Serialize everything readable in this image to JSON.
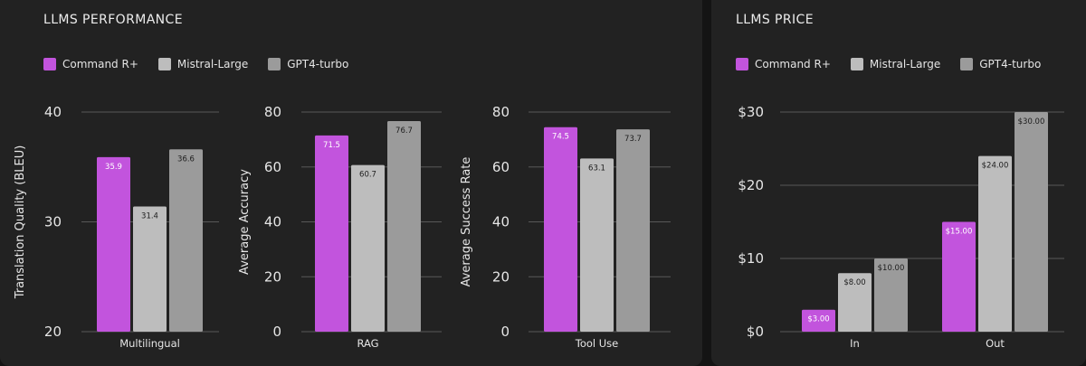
{
  "colors": {
    "command": "#c254dd",
    "mistral": "#bdbdbd",
    "gpt": "#9b9b9b",
    "grid": "#585858",
    "text": "#e6e6e6",
    "label_dark": "#1c1c1c"
  },
  "performance": {
    "title": "LLMS PERFORMANCE",
    "legend": [
      {
        "name": "Command R+",
        "color": "#c254dd"
      },
      {
        "name": "Mistral-Large",
        "color": "#bdbdbd"
      },
      {
        "name": "GPT4-turbo",
        "color": "#9b9b9b"
      }
    ]
  },
  "price": {
    "title": "LLMS PRICE",
    "legend": [
      {
        "name": "Command R+",
        "color": "#c254dd"
      },
      {
        "name": "Mistral-Large",
        "color": "#bdbdbd"
      },
      {
        "name": "GPT4-turbo",
        "color": "#9b9b9b"
      }
    ]
  },
  "chart_data": [
    {
      "type": "bar",
      "categories": [
        "Multilingual"
      ],
      "ylabel": "Translation Quality (BLEU)",
      "ylim": [
        20,
        40
      ],
      "yticks": [
        {
          "value": 20,
          "label": "20"
        },
        {
          "value": 30,
          "label": "30"
        },
        {
          "value": 40,
          "label": "40"
        }
      ],
      "grid": true,
      "series": [
        {
          "name": "Command R+",
          "values": [
            35.9
          ],
          "labels": [
            "35.9"
          ]
        },
        {
          "name": "Mistral-Large",
          "values": [
            31.4
          ],
          "labels": [
            "31.4"
          ]
        },
        {
          "name": "GPT4-turbo",
          "values": [
            36.6
          ],
          "labels": [
            "36.6"
          ]
        }
      ]
    },
    {
      "type": "bar",
      "categories": [
        "RAG"
      ],
      "ylabel": "Average Accuracy",
      "ylim": [
        0,
        80
      ],
      "yticks": [
        {
          "value": 0,
          "label": "0"
        },
        {
          "value": 20,
          "label": "20"
        },
        {
          "value": 40,
          "label": "40"
        },
        {
          "value": 60,
          "label": "60"
        },
        {
          "value": 80,
          "label": "80"
        }
      ],
      "grid": true,
      "series": [
        {
          "name": "Command R+",
          "values": [
            71.5
          ],
          "labels": [
            "71.5"
          ]
        },
        {
          "name": "Mistral-Large",
          "values": [
            60.7
          ],
          "labels": [
            "60.7"
          ]
        },
        {
          "name": "GPT4-turbo",
          "values": [
            76.7
          ],
          "labels": [
            "76.7"
          ]
        }
      ]
    },
    {
      "type": "bar",
      "categories": [
        "Tool Use"
      ],
      "ylabel": "Average Success Rate",
      "ylim": [
        0,
        80
      ],
      "yticks": [
        {
          "value": 0,
          "label": "0"
        },
        {
          "value": 20,
          "label": "20"
        },
        {
          "value": 40,
          "label": "40"
        },
        {
          "value": 60,
          "label": "60"
        },
        {
          "value": 80,
          "label": "80"
        }
      ],
      "grid": true,
      "series": [
        {
          "name": "Command R+",
          "values": [
            74.5
          ],
          "labels": [
            "74.5"
          ]
        },
        {
          "name": "Mistral-Large",
          "values": [
            63.1
          ],
          "labels": [
            "63.1"
          ]
        },
        {
          "name": "GPT4-turbo",
          "values": [
            73.7
          ],
          "labels": [
            "73.7"
          ]
        }
      ]
    },
    {
      "type": "bar",
      "categories": [
        "In",
        "Out"
      ],
      "ylabel": "",
      "ylim": [
        0,
        30
      ],
      "yticks": [
        {
          "value": 0,
          "label": "$0"
        },
        {
          "value": 10,
          "label": "$10"
        },
        {
          "value": 20,
          "label": "$20"
        },
        {
          "value": 30,
          "label": "$30"
        }
      ],
      "grid": true,
      "series": [
        {
          "name": "Command R+",
          "values": [
            3,
            15
          ],
          "labels": [
            "$3.00",
            "$15.00"
          ]
        },
        {
          "name": "Mistral-Large",
          "values": [
            8,
            24
          ],
          "labels": [
            "$8.00",
            "$24.00"
          ]
        },
        {
          "name": "GPT4-turbo",
          "values": [
            10,
            30
          ],
          "labels": [
            "$10.00",
            "$30.00"
          ]
        }
      ]
    }
  ]
}
